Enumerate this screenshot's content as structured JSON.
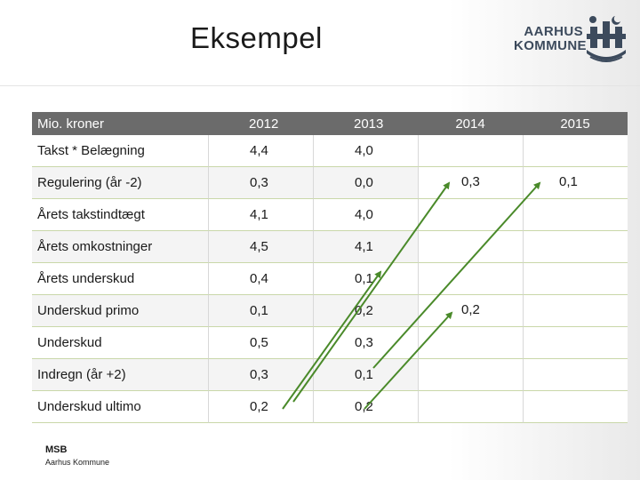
{
  "slide": {
    "title": "Eksempel",
    "logo": {
      "line1": "AARHUS",
      "line2": "KOMMUNE"
    },
    "footer": {
      "org": "MSB",
      "name": "Aarhus Kommune"
    }
  },
  "table": {
    "header": [
      "Mio. kroner",
      "2012",
      "2013",
      "2014",
      "2015"
    ],
    "rows": [
      {
        "label": "Takst * Belægning",
        "y2012": "4,4",
        "y2013": "4,0"
      },
      {
        "label": "Regulering (år -2)",
        "y2012": "0,3",
        "y2013": "0,0"
      },
      {
        "label": "Årets takstindtægt",
        "y2012": "4,1",
        "y2013": "4,0"
      },
      {
        "label": "Årets omkostninger",
        "y2012": "4,5",
        "y2013": "4,1"
      },
      {
        "label": "Årets underskud",
        "y2012": "0,4",
        "y2013": "0,1"
      },
      {
        "label": "Underskud primo",
        "y2012": "0,1",
        "y2013": "0,2"
      },
      {
        "label": "Underskud",
        "y2012": "0,5",
        "y2013": "0,3"
      },
      {
        "label": "Indregn (år +2)",
        "y2012": "0,3",
        "y2013": "0,1"
      },
      {
        "label": "Underskud ultimo",
        "y2012": "0,2",
        "y2013": "0,2"
      }
    ],
    "floating": [
      {
        "value": "0,3"
      },
      {
        "value": "0,1"
      },
      {
        "value": "0,2"
      }
    ]
  },
  "colors": {
    "arrow": "#4a8a2a",
    "header_bg": "#6b6b6b",
    "row_line": "#c9d7a9"
  }
}
